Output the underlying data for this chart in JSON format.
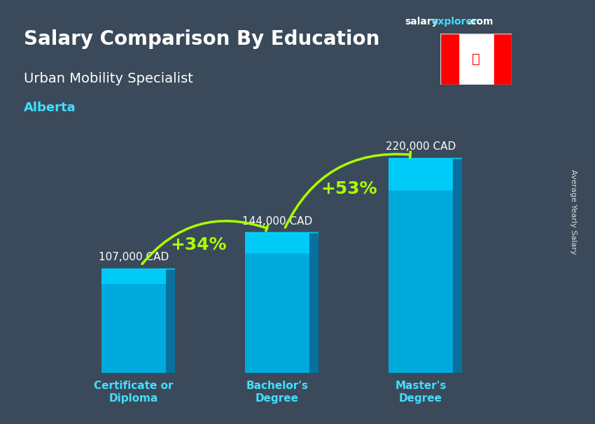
{
  "title_line1": "Salary Comparison By Education",
  "subtitle": "Urban Mobility Specialist",
  "location": "Alberta",
  "brand_salary": "salary",
  "brand_explorer": "explorer",
  "brand_com": ".com",
  "ylabel": "Average Yearly Salary",
  "categories": [
    "Certificate or\nDiploma",
    "Bachelor's\nDegree",
    "Master's\nDegree"
  ],
  "values": [
    107000,
    144000,
    220000
  ],
  "value_labels": [
    "107,000 CAD",
    "144,000 CAD",
    "220,000 CAD"
  ],
  "pct_labels": [
    "+34%",
    "+53%"
  ],
  "bar_color_top": "#00d4ff",
  "bar_color_bottom": "#0077aa",
  "bar_color_mid": "#00aadd",
  "background_color": "#3a4a5a",
  "title_color": "#ffffff",
  "subtitle_color": "#ffffff",
  "location_color": "#44ddff",
  "value_label_color": "#ffffff",
  "pct_color": "#aaff00",
  "arrow_color": "#aaff00",
  "xlabel_color": "#44ddff",
  "brand_salary_color": "#ffffff",
  "brand_explorer_color": "#44ddff",
  "ylim": [
    0,
    260000
  ],
  "bar_width": 0.45
}
